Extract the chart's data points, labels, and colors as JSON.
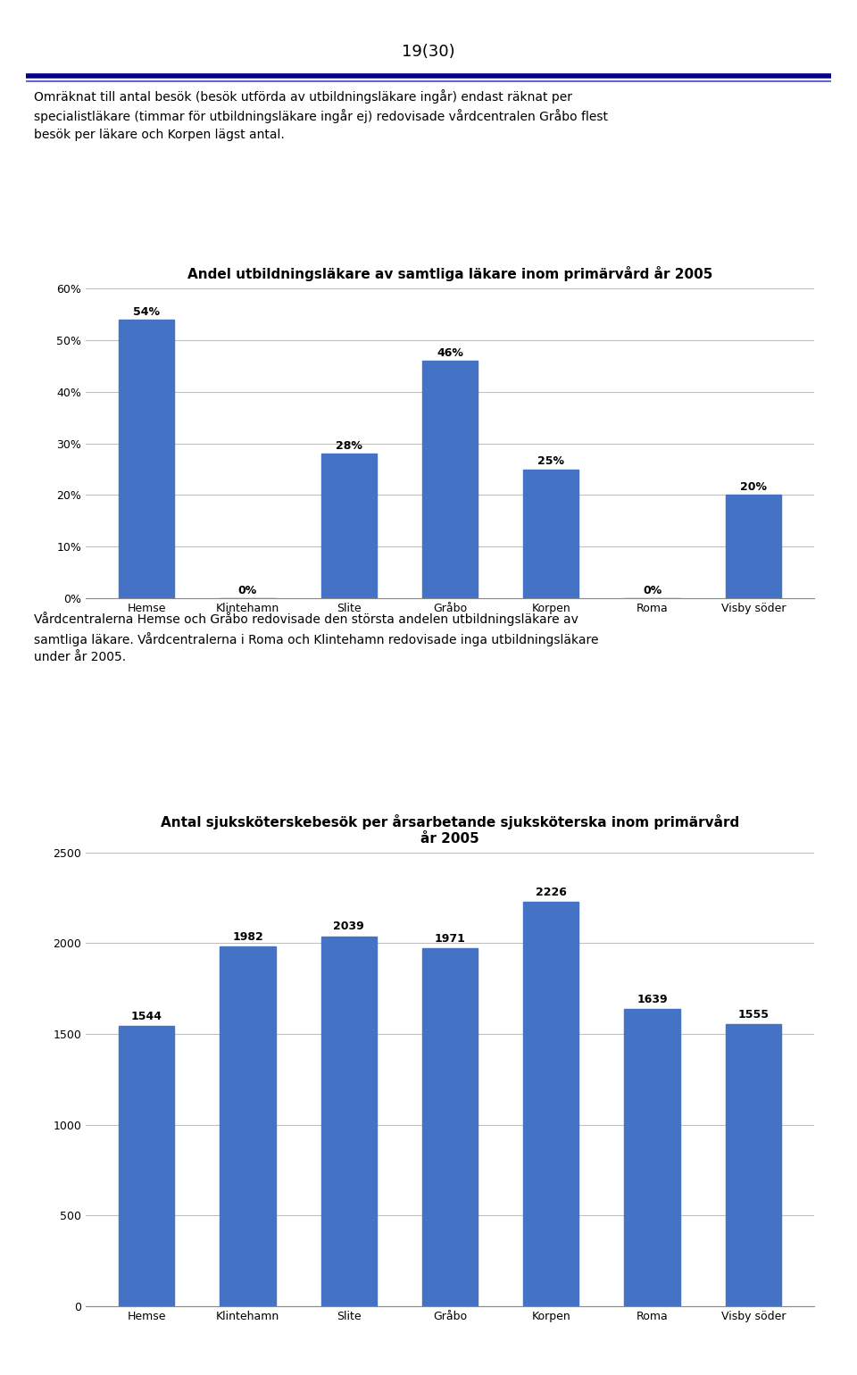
{
  "page_number": "19(30)",
  "intro_text_line1": "Omräknat till antal besök (besök utförda av utbildningsläkare ingår) endast räknat per",
  "intro_text_line2": "specialistläkare (timmar för utbildningsläkare ingår ej) redovisade vårdcentralen Gråbo flest",
  "intro_text_line3": "besök per läkare och Korpen lägst antal.",
  "chart1_title": "Andel utbildningsläkare av samtliga läkare inom primärvård år 2005",
  "chart1_categories": [
    "Hemse",
    "Klintehamn",
    "Slite",
    "Gråbo",
    "Korpen",
    "Roma",
    "Visby söder"
  ],
  "chart1_values": [
    0.54,
    0.0,
    0.28,
    0.46,
    0.25,
    0.0,
    0.2
  ],
  "chart1_labels": [
    "54%",
    "0%",
    "28%",
    "46%",
    "25%",
    "0%",
    "20%"
  ],
  "chart1_ylim": [
    0,
    0.6
  ],
  "chart1_yticks": [
    0.0,
    0.1,
    0.2,
    0.3,
    0.4,
    0.5,
    0.6
  ],
  "chart1_ytick_labels": [
    "0%",
    "10%",
    "20%",
    "30%",
    "40%",
    "50%",
    "60%"
  ],
  "middle_text_line1": "Vårdcentralerna Hemse och Gråbo redovisade den största andelen utbildningsläkare av",
  "middle_text_line2": "samtliga läkare. Vårdcentralerna i Roma och Klintehamn redovisade inga utbildningsläkare",
  "middle_text_line3": "under år 2005.",
  "chart2_title_line1": "Antal sjuksköterskebesök per årsarbetande sjuksköterska inom primärvård",
  "chart2_title_line2": "år 2005",
  "chart2_categories": [
    "Hemse",
    "Klintehamn",
    "Slite",
    "Gråbo",
    "Korpen",
    "Roma",
    "Visby söder"
  ],
  "chart2_values": [
    1544,
    1982,
    2039,
    1971,
    2226,
    1639,
    1555
  ],
  "chart2_labels": [
    "1544",
    "1982",
    "2039",
    "1971",
    "2226",
    "1639",
    "1555"
  ],
  "chart2_ylim": [
    0,
    2500
  ],
  "chart2_yticks": [
    0,
    500,
    1000,
    1500,
    2000,
    2500
  ],
  "bar_color": "#4472C4",
  "bar_edge_color": "#4472C4",
  "grid_color": "#c0c0c0",
  "background_color": "#ffffff",
  "text_color": "#000000",
  "chart_title_fontsize": 11,
  "label_fontsize": 9,
  "tick_fontsize": 9,
  "body_fontsize": 10,
  "header_line_color_dark": "#00008B",
  "header_line_color_light": "#6666cc"
}
